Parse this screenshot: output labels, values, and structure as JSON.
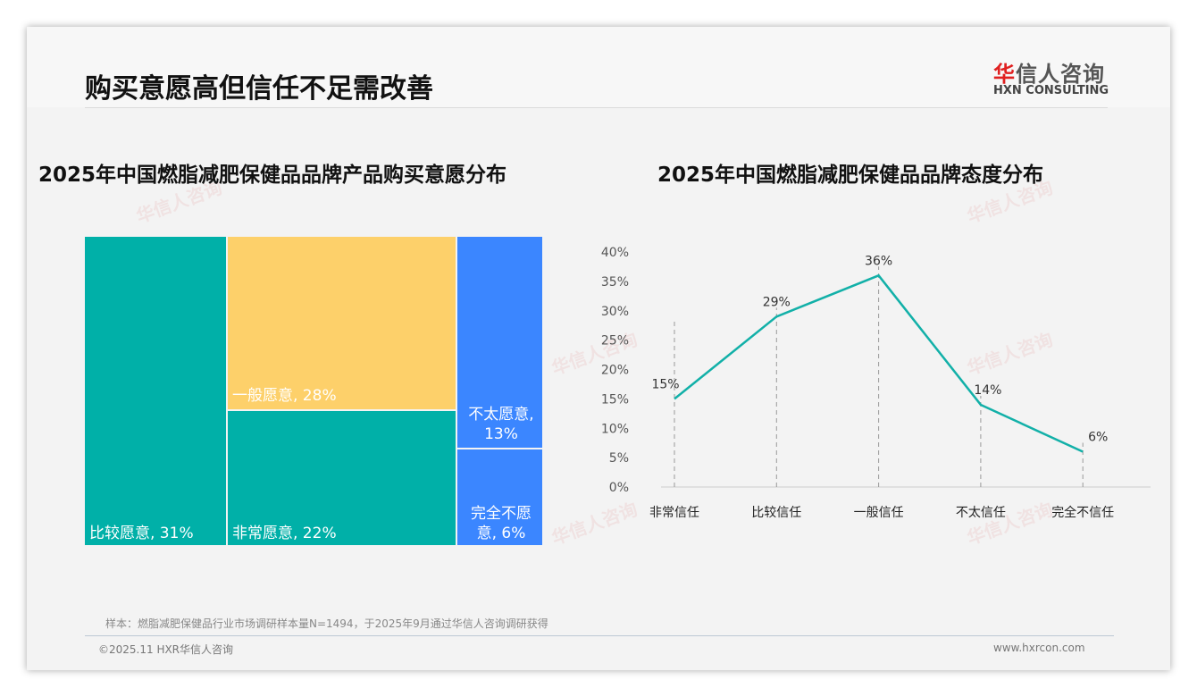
{
  "header": {
    "title": "购买意愿高但信任不足需改善",
    "logo_cn_first": "华",
    "logo_cn_rest": "信人咨询",
    "logo_en": "HXN CONSULTING"
  },
  "colors": {
    "teal": "#00b0a8",
    "yellow": "#fdd06a",
    "blue": "#3b86ff"
  },
  "chart_data": [
    {
      "type": "treemap",
      "title": "2025年中国燃脂减肥保健品品牌产品购买意愿分布",
      "items": [
        {
          "label": "比较愿意, 31%",
          "name": "比较愿意",
          "value": 31
        },
        {
          "label": "一般愿意, 28%",
          "name": "一般愿意",
          "value": 28
        },
        {
          "label": "非常愿意, 22%",
          "name": "非常愿意",
          "value": 22
        },
        {
          "label": "不太愿意, 13%",
          "name": "不太愿意",
          "value": 13
        },
        {
          "label": "完全不愿意, 6%",
          "name": "完全不愿意",
          "value": 6
        }
      ]
    },
    {
      "type": "line",
      "title": "2025年中国燃脂减肥保健品品牌态度分布",
      "categories": [
        "非常信任",
        "比较信任",
        "一般信任",
        "不太信任",
        "完全不信任"
      ],
      "values": [
        15,
        29,
        36,
        14,
        6
      ],
      "labels": [
        "15%",
        "29%",
        "36%",
        "14%",
        "6%"
      ],
      "yticks": [
        "0%",
        "5%",
        "10%",
        "15%",
        "20%",
        "25%",
        "30%",
        "35%",
        "40%"
      ],
      "ylim": [
        0,
        40
      ]
    }
  ],
  "footer": {
    "note": "样本：燃脂减肥保健品行业市场调研样本量N=1494，于2025年9月通过华信人咨询调研获得",
    "copyright": "©2025.11 HXR华信人咨询",
    "url": "www.hxrcon.com"
  }
}
